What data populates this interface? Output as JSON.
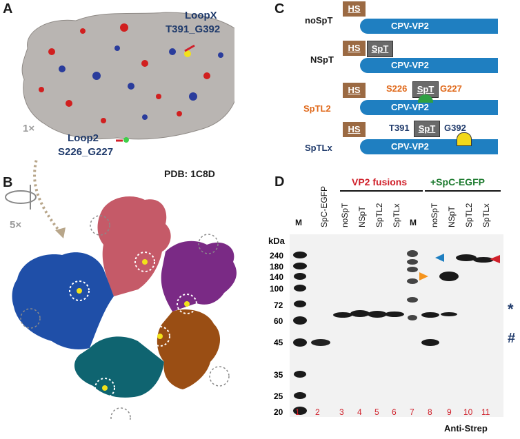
{
  "panels": {
    "A": {
      "label": "A",
      "loopx_title": "LoopX",
      "loopx_site": "T391_G392",
      "loop2_title": "Loop2",
      "loop2_site": "S226_G227",
      "pdb": "PDB: 1C8D"
    },
    "B": {
      "label": "B",
      "count_1x": "1×",
      "count_5x": "5×"
    },
    "C": {
      "label": "C",
      "constructs": [
        {
          "name": "noSpT",
          "hs": "HS",
          "body": "CPV-VP2",
          "name_color": "#1a1a1a"
        },
        {
          "name": "NSpT",
          "hs": "HS",
          "spt": "SpT",
          "body": "CPV-VP2",
          "name_color": "#1a1a1a"
        },
        {
          "name": "SpTL2",
          "hs": "HS",
          "spt": "SpT",
          "left": "S226",
          "right": "G227",
          "body": "CPV-VP2",
          "name_color": "#e06a1c"
        },
        {
          "name": "SpTLx",
          "hs": "HS",
          "spt": "SpT",
          "left": "T391",
          "right": "G392",
          "body": "CPV-VP2",
          "name_color": "#1f3a6b"
        }
      ]
    },
    "D": {
      "label": "D",
      "group1": "VP2 fusions",
      "group2": "+SpC-EGFP",
      "lane_headers": [
        "M",
        "SpC-EGFP",
        "noSpT",
        "NSpT",
        "SpTL2",
        "SpTLx",
        "M",
        "noSpT",
        "NSpT",
        "SpTL2",
        "SpTLx"
      ],
      "lane_numbers": [
        "1",
        "2",
        "3",
        "4",
        "5",
        "6",
        "7",
        "8",
        "9",
        "10",
        "11"
      ],
      "kda_label": "kDa",
      "markers": [
        "240",
        "180",
        "140",
        "100",
        "72",
        "60",
        "45",
        "35",
        "25",
        "20"
      ],
      "star": "*",
      "hash": "#",
      "antibody": "Anti-Strep"
    }
  },
  "colors": {
    "hs_box": "#9b6a43",
    "vp2_bar": "#1f7fc1",
    "red_text": "#d0202a",
    "navy_text": "#1f3a6b",
    "orange_text": "#e06a1c",
    "green_text": "#1c7a2e"
  }
}
